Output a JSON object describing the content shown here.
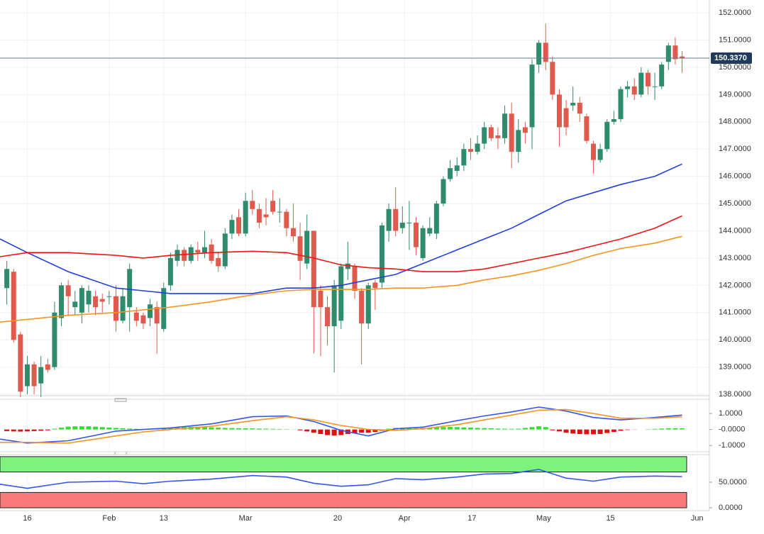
{
  "chart_data": [
    {
      "type": "candlestick",
      "xlim": [
        -1,
        103
      ],
      "xticks": [
        {
          "value": 3,
          "label": "16"
        },
        {
          "value": 15,
          "label": "Feb"
        },
        {
          "value": 23,
          "label": "13"
        },
        {
          "value": 35,
          "label": "Mar"
        },
        {
          "value": 48.5,
          "label": "20"
        },
        {
          "value": 58.3,
          "label": "Apr"
        },
        {
          "value": 68.2,
          "label": "17"
        },
        {
          "value": 78.7,
          "label": "May"
        },
        {
          "value": 88.5,
          "label": "15"
        },
        {
          "value": 101.2,
          "label": "Jun"
        }
      ],
      "ylim": [
        137.95,
        152.47
      ],
      "yticks": [
        {
          "value": 138,
          "label": "138.0000"
        },
        {
          "value": 139,
          "label": "139.0000"
        },
        {
          "value": 140,
          "label": "140.0000"
        },
        {
          "value": 141,
          "label": "141.0000"
        },
        {
          "value": 142,
          "label": "142.0000"
        },
        {
          "value": 143,
          "label": "143.0000"
        },
        {
          "value": 144,
          "label": "144.0000"
        },
        {
          "value": 145,
          "label": "145.0000"
        },
        {
          "value": 146,
          "label": "146.0000"
        },
        {
          "value": 147,
          "label": "147.0000"
        },
        {
          "value": 148,
          "label": "148.0000"
        },
        {
          "value": 149,
          "label": "149.0000"
        },
        {
          "value": 150,
          "label": "150.0000"
        },
        {
          "value": 151,
          "label": "151.0000"
        },
        {
          "value": 152,
          "label": "152.0000"
        }
      ],
      "grid": true,
      "up_color": "#2e8b6b",
      "down_color": "#e0594d",
      "open": [
        141.9,
        142.5,
        140.2,
        138.3,
        139.1,
        138.4,
        139.1,
        139.0,
        140.8,
        142.0,
        141.2,
        141.0,
        141.3,
        141.6,
        141.5,
        141.6,
        141.6,
        140.7,
        141.2,
        141.0,
        140.9,
        140.8,
        141.2,
        140.4,
        142.0,
        142.9,
        143.3,
        142.9,
        143.3,
        143.2,
        143.5,
        143.0,
        142.7,
        143.9,
        144.5,
        143.9,
        145.1,
        144.8,
        144.6,
        145.1,
        144.7,
        144.7,
        144.1,
        143.8,
        142.8,
        144.0,
        141.8,
        141.2,
        140.5,
        140.7,
        142.6,
        142.7,
        141.8,
        140.6,
        142.1,
        142.1,
        144.0,
        144.8,
        144.1,
        144.3,
        144.3,
        143.0,
        143.9,
        143.9,
        145.0,
        145.9,
        146.2,
        146.4,
        147.0,
        146.9,
        147.2,
        147.8,
        147.5,
        147.4,
        148.3,
        146.9,
        147.8,
        147.8,
        150.1,
        150.9,
        150.2,
        149.0,
        148.5,
        148.6,
        148.7,
        148.2,
        147.2,
        146.6,
        147.0,
        148.0,
        148.1,
        149.2,
        149.3,
        149.0,
        149.8,
        149.3,
        149.3,
        150.2,
        150.8,
        150.4
      ],
      "high": [
        142.9,
        142.6,
        140.3,
        139.4,
        139.2,
        139.4,
        139.3,
        141.4,
        142.1,
        142.2,
        141.8,
        142.0,
        142.0,
        141.8,
        141.7,
        141.8,
        142.0,
        141.9,
        142.8,
        141.2,
        141.0,
        141.5,
        141.4,
        142.1,
        143.2,
        143.5,
        143.4,
        143.5,
        143.6,
        144.0,
        143.7,
        143.2,
        144.1,
        144.6,
        144.8,
        145.4,
        145.5,
        145.0,
        145.2,
        145.5,
        145.2,
        144.8,
        145.0,
        144.3,
        144.6,
        144.0,
        142.0,
        141.6,
        142.2,
        142.8,
        143.6,
        142.8,
        141.9,
        142.1,
        142.2,
        144.3,
        145.0,
        145.6,
        144.9,
        145.1,
        144.5,
        144.2,
        144.5,
        145.1,
        146.0,
        146.6,
        146.7,
        147.2,
        147.4,
        147.5,
        148.0,
        147.9,
        147.8,
        148.6,
        148.7,
        148.1,
        148.0,
        150.3,
        151.0,
        151.6,
        150.4,
        149.2,
        148.8,
        149.3,
        148.9,
        148.3,
        147.3,
        147.2,
        148.1,
        148.4,
        149.3,
        149.5,
        149.6,
        150.0,
        149.9,
        149.8,
        150.2,
        150.9,
        151.1,
        150.6
      ],
      "low": [
        141.3,
        139.9,
        137.9,
        138.0,
        138.0,
        137.9,
        138.8,
        138.9,
        140.5,
        140.9,
        140.9,
        140.6,
        141.0,
        140.9,
        141.0,
        141.3,
        140.3,
        140.6,
        140.3,
        140.5,
        140.4,
        140.5,
        139.5,
        140.3,
        141.8,
        142.7,
        142.7,
        142.8,
        142.9,
        143.0,
        142.8,
        142.5,
        142.6,
        143.7,
        143.8,
        143.8,
        144.6,
        144.1,
        144.2,
        144.6,
        144.3,
        143.8,
        143.6,
        142.2,
        142.6,
        139.5,
        139.4,
        139.8,
        138.8,
        140.4,
        142.2,
        141.5,
        139.1,
        140.4,
        141.1,
        141.9,
        143.6,
        143.8,
        143.9,
        143.3,
        143.1,
        142.9,
        143.8,
        143.7,
        144.9,
        145.8,
        146.0,
        146.2,
        146.6,
        146.8,
        147.0,
        147.3,
        147.0,
        147.2,
        146.3,
        146.5,
        147.2,
        147.0,
        149.8,
        149.9,
        148.8,
        147.1,
        147.5,
        148.4,
        148.0,
        147.2,
        146.1,
        146.5,
        146.9,
        147.9,
        148.0,
        148.9,
        148.8,
        148.9,
        149.0,
        148.8,
        149.2,
        149.9,
        150.1,
        149.8
      ],
      "close": [
        142.6,
        140.0,
        138.1,
        139.1,
        138.3,
        139.0,
        138.9,
        141.0,
        142.0,
        141.6,
        141.4,
        141.9,
        141.8,
        141.2,
        141.4,
        141.6,
        140.7,
        141.6,
        142.6,
        140.7,
        140.6,
        141.3,
        140.6,
        141.9,
        143.0,
        143.3,
        142.9,
        143.4,
        143.2,
        143.4,
        142.9,
        142.7,
        143.9,
        144.4,
        143.9,
        145.1,
        144.8,
        144.3,
        144.5,
        144.7,
        144.7,
        144.1,
        143.8,
        142.9,
        144.0,
        141.2,
        141.2,
        140.5,
        142.0,
        142.7,
        142.8,
        141.8,
        140.6,
        142.0,
        141.9,
        144.2,
        144.8,
        144.0,
        144.3,
        144.3,
        143.4,
        144.1,
        144.1,
        145.0,
        145.9,
        146.3,
        146.4,
        147.0,
        146.9,
        147.2,
        147.8,
        147.4,
        147.4,
        148.3,
        146.9,
        147.7,
        147.6,
        150.1,
        150.9,
        150.2,
        149.0,
        147.8,
        147.8,
        148.7,
        148.3,
        147.3,
        146.6,
        147.0,
        148.0,
        148.1,
        149.2,
        149.3,
        149.0,
        149.8,
        149.3,
        149.3,
        150.1,
        150.8,
        150.3,
        150.337
      ],
      "lines": [
        {
          "color": "#1f3fe0",
          "x": [
            -1,
            3,
            9,
            16,
            20,
            24,
            30,
            36,
            41,
            45,
            49,
            53,
            57,
            61,
            66,
            70,
            74,
            78,
            82,
            86,
            90,
            95,
            99
          ],
          "values": [
            143.7,
            143.2,
            142.5,
            141.9,
            141.8,
            141.7,
            141.7,
            141.7,
            141.9,
            141.9,
            142.0,
            142.2,
            142.4,
            142.8,
            143.3,
            143.7,
            144.1,
            144.6,
            145.1,
            145.4,
            145.7,
            146.0,
            146.45
          ]
        },
        {
          "color": "#f01414",
          "x": [
            -1,
            3,
            9,
            16,
            20,
            24,
            30,
            36,
            41,
            45,
            49,
            53,
            57,
            61,
            66,
            70,
            74,
            78,
            82,
            86,
            90,
            95,
            99
          ],
          "values": [
            143.05,
            143.2,
            143.2,
            143.1,
            143.0,
            143.1,
            143.2,
            143.25,
            143.2,
            143.0,
            142.75,
            142.65,
            142.6,
            142.5,
            142.5,
            142.6,
            142.8,
            143.0,
            143.2,
            143.45,
            143.7,
            144.1,
            144.55
          ]
        },
        {
          "color": "#f7941d",
          "x": [
            -1,
            3,
            9,
            16,
            20,
            24,
            30,
            36,
            41,
            45,
            49,
            53,
            57,
            61,
            66,
            70,
            74,
            78,
            82,
            86,
            90,
            95,
            99
          ],
          "values": [
            140.65,
            140.75,
            140.9,
            141.0,
            141.1,
            141.2,
            141.4,
            141.65,
            141.8,
            141.85,
            141.85,
            141.85,
            141.9,
            141.9,
            142.0,
            142.2,
            142.35,
            142.55,
            142.8,
            143.1,
            143.35,
            143.55,
            143.8
          ]
        }
      ],
      "last_price": {
        "value": 150.337,
        "label": "150.3370",
        "color": "#1f3a5a"
      }
    },
    {
      "type": "macd",
      "ylim": [
        -1.3,
        1.8
      ],
      "yticks": [
        {
          "value": 1,
          "label": "1.0000"
        },
        {
          "value": 0,
          "label": "-0.0000"
        },
        {
          "value": -1,
          "label": "-1.0000"
        }
      ],
      "up_color": "#33dd33",
      "down_color": "#e01010",
      "histogram": [
        -0.1,
        -0.12,
        -0.13,
        -0.12,
        -0.1,
        -0.08,
        -0.05,
        0.05,
        0.12,
        0.18,
        0.2,
        0.2,
        0.2,
        0.18,
        0.15,
        0.12,
        0.1,
        0.08,
        0.06,
        0.04,
        0.02,
        0.02,
        0.03,
        0.05,
        0.1,
        0.14,
        0.16,
        0.17,
        0.17,
        0.16,
        0.14,
        0.12,
        0.1,
        0.09,
        0.08,
        0.08,
        0.07,
        0.06,
        0.05,
        0.04,
        0.03,
        0.02,
        0.01,
        -0.05,
        -0.12,
        -0.2,
        -0.28,
        -0.35,
        -0.38,
        -0.35,
        -0.28,
        -0.22,
        -0.2,
        -0.2,
        -0.15,
        -0.08,
        0.05,
        0.1,
        0.1,
        0.09,
        0.08,
        0.1,
        0.12,
        0.14,
        0.15,
        0.16,
        0.15,
        0.13,
        0.12,
        0.1,
        0.09,
        0.08,
        0.06,
        0.05,
        0.04,
        0.05,
        0.1,
        0.15,
        0.2,
        0.15,
        -0.05,
        -0.12,
        -0.2,
        -0.25,
        -0.28,
        -0.3,
        -0.3,
        -0.28,
        -0.22,
        -0.15,
        -0.08,
        -0.03,
        -0.01,
        0.0,
        0.02,
        0.04,
        0.06,
        0.08,
        0.08,
        0.07
      ],
      "lines": [
        {
          "color": "#3355ee",
          "x": [
            -1,
            3,
            9,
            16,
            20,
            24,
            30,
            36,
            41,
            45,
            49,
            53,
            57,
            61,
            66,
            70,
            74,
            78,
            82,
            86,
            90,
            95,
            99
          ],
          "values": [
            -0.6,
            -0.85,
            -0.7,
            -0.1,
            0.0,
            0.1,
            0.35,
            0.8,
            0.85,
            0.5,
            -0.05,
            -0.4,
            0.05,
            0.15,
            0.55,
            0.85,
            1.1,
            1.4,
            1.15,
            0.75,
            0.6,
            0.75,
            0.9
          ]
        },
        {
          "color": "#f7941d",
          "x": [
            -1,
            3,
            9,
            16,
            20,
            24,
            30,
            36,
            41,
            45,
            49,
            53,
            57,
            61,
            66,
            70,
            74,
            78,
            82,
            86,
            90,
            95,
            99
          ],
          "values": [
            -0.8,
            -0.8,
            -0.85,
            -0.4,
            -0.15,
            0.0,
            0.2,
            0.55,
            0.8,
            0.6,
            0.25,
            0.0,
            -0.05,
            0.05,
            0.3,
            0.6,
            0.9,
            1.2,
            1.25,
            1.0,
            0.7,
            0.7,
            0.8
          ]
        }
      ]
    },
    {
      "type": "rsi",
      "ylim": [
        -5.5,
        104
      ],
      "yticks": [
        {
          "value": 50,
          "label": "50.0000"
        },
        {
          "value": 0,
          "label": "0.0000"
        }
      ],
      "zones": [
        {
          "from": 70,
          "to": 100,
          "color": "#7df27d"
        },
        {
          "from": 0,
          "to": 30,
          "color": "#f87a7a"
        }
      ],
      "lines": [
        {
          "color": "#3355ee",
          "x": [
            -1,
            3,
            9,
            16,
            20,
            24,
            30,
            36,
            41,
            45,
            49,
            53,
            57,
            61,
            66,
            70,
            74,
            78,
            82,
            86,
            90,
            95,
            99
          ],
          "values": [
            46,
            38,
            50,
            52,
            47,
            52,
            56,
            63,
            60,
            48,
            42,
            45,
            57,
            55,
            60,
            66,
            67,
            75,
            58,
            52,
            60,
            62,
            61
          ]
        }
      ]
    }
  ]
}
